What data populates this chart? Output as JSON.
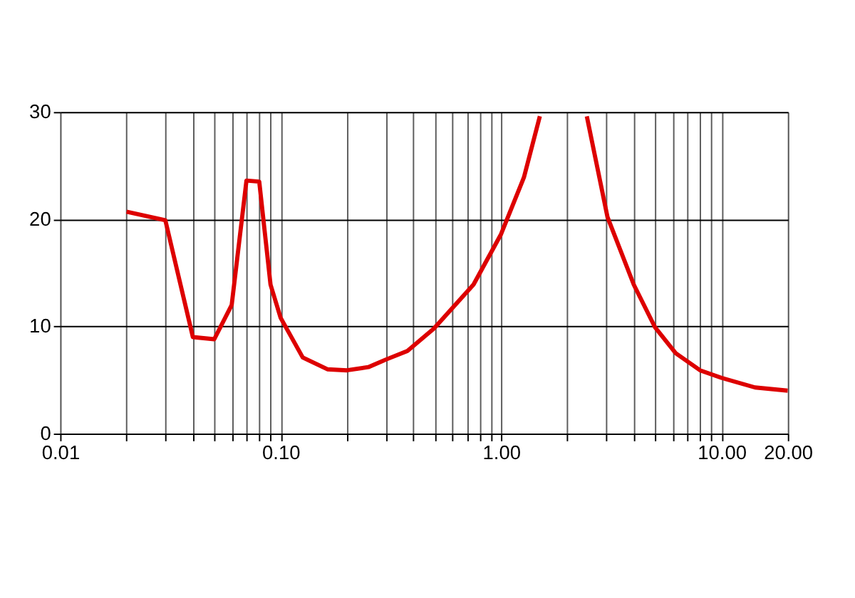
{
  "chart_data": {
    "type": "line",
    "log": "x",
    "grid": true,
    "marker": "none",
    "line_style": "solid",
    "xlim": [
      0.01,
      20
    ],
    "ylim": [
      0,
      30
    ],
    "xticks": [
      0.01,
      {
        "value": 0.02,
        "label": null
      },
      {
        "value": 0.03,
        "label": null
      },
      {
        "value": 0.04,
        "label": null
      },
      {
        "value": 0.05,
        "label": null
      },
      {
        "value": 0.06,
        "label": null
      },
      {
        "value": 0.07,
        "label": null
      },
      {
        "value": 0.08,
        "label": null
      },
      {
        "value": 0.09,
        "label": null
      },
      {
        "value": 0.1,
        "label": "0.10"
      },
      {
        "value": 0.2,
        "label": null
      },
      {
        "value": 0.3,
        "label": null
      },
      {
        "value": 0.4,
        "label": null
      },
      {
        "value": 0.5,
        "label": null
      },
      {
        "value": 0.6,
        "label": null
      },
      {
        "value": 0.7,
        "label": null
      },
      {
        "value": 0.8,
        "label": null
      },
      {
        "value": 0.9,
        "label": null
      },
      {
        "value": 1,
        "label": "1.00"
      },
      {
        "value": 2,
        "label": null
      },
      {
        "value": 3,
        "label": null
      },
      {
        "value": 4,
        "label": null
      },
      {
        "value": 5,
        "label": null
      },
      {
        "value": 6,
        "label": null
      },
      {
        "value": 7,
        "label": null
      },
      {
        "value": 8,
        "label": null
      },
      {
        "value": 9,
        "label": null
      },
      {
        "value": 10,
        "label": "10.00"
      },
      {
        "value": 20,
        "label": "20.00"
      }
    ],
    "yticks": [
      0,
      10,
      20,
      30
    ],
    "series": [
      {
        "color": "#dd0000",
        "x": [
          0.02,
          0.03,
          0.04,
          0.05,
          0.06,
          0.07,
          0.08,
          0.09,
          0.1,
          0.126,
          0.163,
          0.2,
          0.25,
          0.3,
          0.376,
          0.496,
          0.75,
          1.0,
          1.27,
          1.5,
          2,
          2.45,
          3.04,
          4.0,
          5.0,
          6.2,
          8.0,
          10.0,
          14.2,
          20
        ],
        "values": [
          20.7,
          19.9,
          9.0,
          8.8,
          12.0,
          23.6,
          23.5,
          13.9,
          10.8,
          7.1,
          6.0,
          5.9,
          6.2,
          6.9,
          7.7,
          9.8,
          13.9,
          18.6,
          23.9,
          29.6,
          null,
          29.6,
          20.2,
          13.9,
          9.9,
          7.5,
          5.9,
          5.2,
          4.3,
          4.0
        ]
      }
    ]
  }
}
